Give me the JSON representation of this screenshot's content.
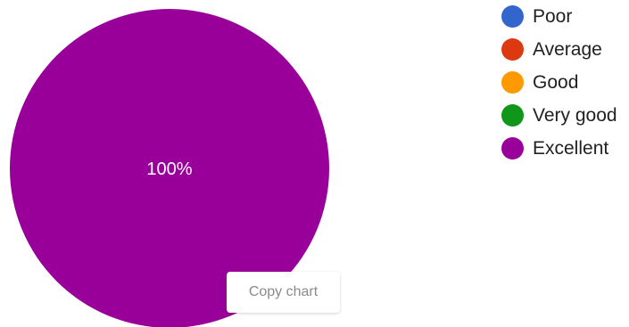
{
  "chart_data": {
    "type": "pie",
    "categories": [
      "Poor",
      "Average",
      "Good",
      "Very good",
      "Excellent"
    ],
    "values": [
      0,
      0,
      0,
      0,
      100
    ],
    "colors": [
      "#3366cc",
      "#dc3912",
      "#ff9900",
      "#109618",
      "#990099"
    ],
    "slice_labels": [
      "",
      "",
      "",
      "",
      "100%"
    ],
    "legend_position": "right"
  },
  "legend": {
    "items": [
      {
        "label": "Poor",
        "color": "#3366cc"
      },
      {
        "label": "Average",
        "color": "#dc3912"
      },
      {
        "label": "Good",
        "color": "#ff9900"
      },
      {
        "label": "Very good",
        "color": "#109618"
      },
      {
        "label": "Excellent",
        "color": "#990099"
      }
    ]
  },
  "actions": {
    "copy_chart_label": "Copy chart"
  }
}
